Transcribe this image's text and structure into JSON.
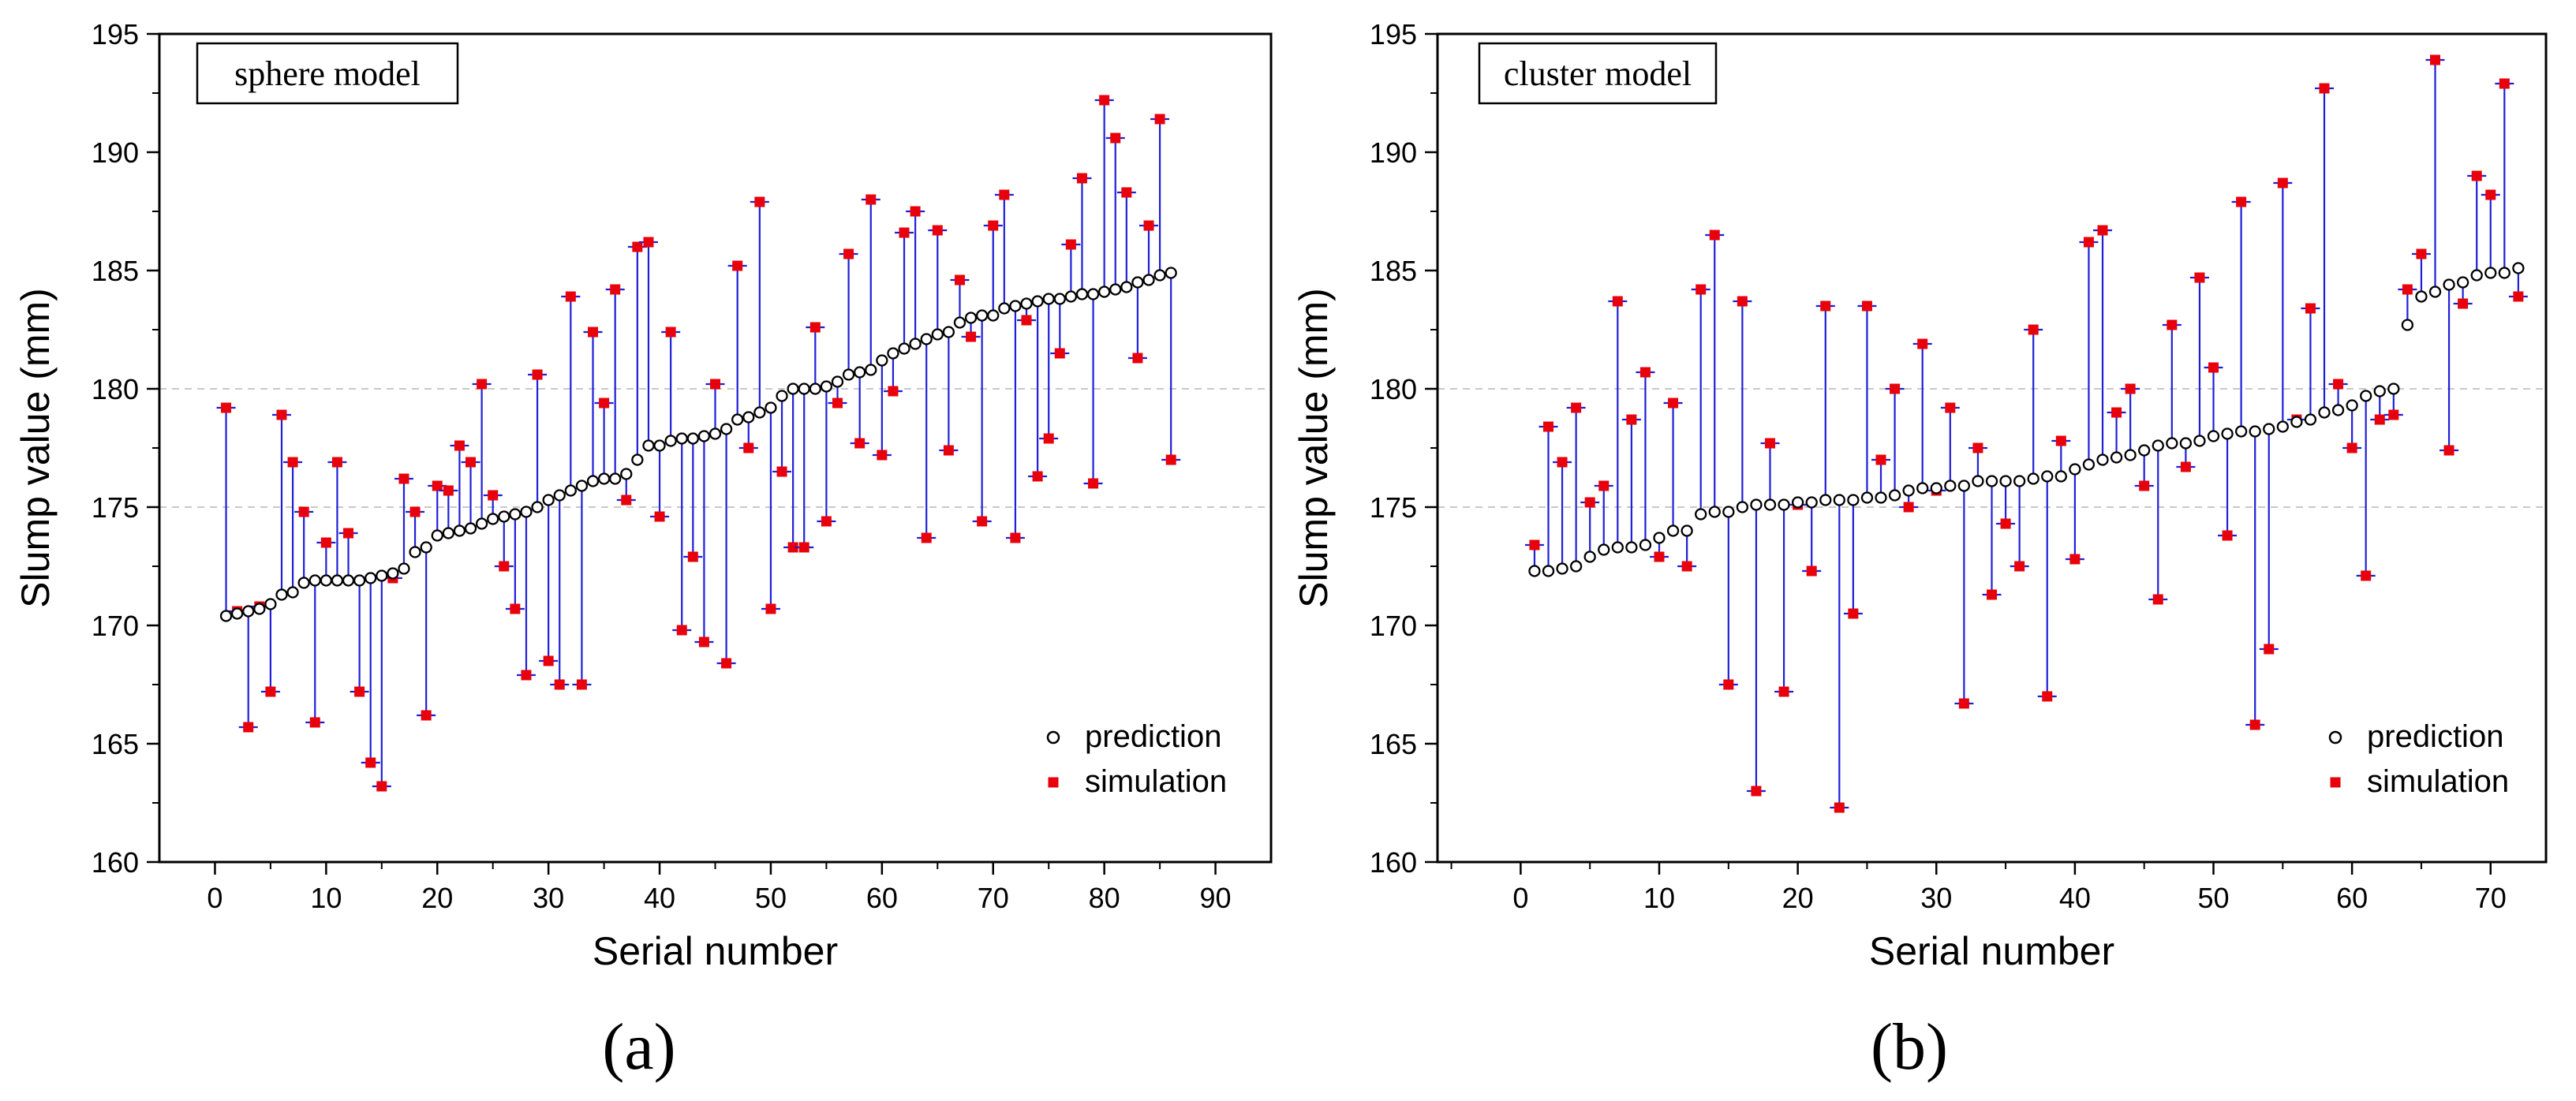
{
  "chart_data": [
    {
      "panel_label": "(a)",
      "type": "scatter",
      "title": "sphere model",
      "xlabel": "Serial number",
      "ylabel": "Slump value (mm)",
      "xlim": [
        -5,
        95
      ],
      "ylim": [
        160,
        195
      ],
      "x_ticks": [
        0,
        10,
        20,
        30,
        40,
        50,
        60,
        70,
        80,
        90
      ],
      "y_ticks": [
        160,
        165,
        170,
        175,
        180,
        185,
        190,
        195
      ],
      "grid_y": [
        175,
        180
      ],
      "legend_position": "bottom-right",
      "series": [
        {
          "name": "prediction",
          "marker": "open-circle",
          "color": "#000000",
          "values": [
            170.4,
            170.5,
            170.6,
            170.7,
            170.9,
            171.3,
            171.4,
            171.8,
            171.9,
            171.9,
            171.9,
            171.9,
            171.9,
            172.0,
            172.1,
            172.2,
            172.4,
            173.1,
            173.3,
            173.8,
            173.9,
            174.0,
            174.1,
            174.3,
            174.5,
            174.6,
            174.7,
            174.8,
            175.0,
            175.3,
            175.5,
            175.7,
            175.9,
            176.1,
            176.2,
            176.2,
            176.4,
            177.0,
            177.6,
            177.6,
            177.8,
            177.9,
            177.9,
            178.0,
            178.1,
            178.3,
            178.7,
            178.8,
            179.0,
            179.2,
            179.7,
            180.0,
            180.0,
            180.0,
            180.1,
            180.3,
            180.6,
            180.7,
            180.8,
            181.2,
            181.5,
            181.7,
            181.9,
            182.1,
            182.3,
            182.4,
            182.8,
            183.0,
            183.1,
            183.1,
            183.4,
            183.5,
            183.6,
            183.7,
            183.8,
            183.8,
            183.9,
            184.0,
            184.0,
            184.1,
            184.2,
            184.3,
            184.5,
            184.6,
            184.8,
            184.9
          ]
        },
        {
          "name": "simulation",
          "marker": "filled-square",
          "color": "#e8000b",
          "values": [
            179.2,
            170.6,
            165.7,
            170.8,
            167.2,
            178.9,
            176.9,
            174.8,
            165.9,
            173.5,
            176.9,
            173.9,
            167.2,
            164.2,
            163.2,
            172.0,
            176.2,
            174.8,
            166.2,
            175.9,
            175.7,
            177.6,
            176.9,
            180.2,
            175.5,
            172.5,
            170.7,
            167.9,
            180.6,
            168.5,
            167.5,
            183.9,
            167.5,
            182.4,
            179.4,
            184.2,
            175.3,
            186.0,
            186.2,
            174.6,
            182.4,
            169.8,
            172.9,
            169.3,
            180.2,
            168.4,
            185.2,
            177.5,
            187.9,
            170.7,
            176.5,
            173.3,
            173.3,
            182.6,
            174.4,
            179.4,
            185.7,
            177.7,
            188.0,
            177.2,
            179.9,
            186.6,
            187.5,
            173.7,
            186.7,
            177.4,
            184.6,
            182.2,
            174.4,
            186.9,
            188.2,
            173.7,
            182.9,
            176.3,
            177.9,
            181.5,
            186.1,
            188.9,
            176.0,
            192.2,
            190.6,
            188.3,
            181.3,
            186.9,
            191.4,
            177.0
          ]
        }
      ]
    },
    {
      "panel_label": "(b)",
      "type": "scatter",
      "title": "cluster model",
      "xlabel": "Serial number",
      "ylabel": "Slump value (mm)",
      "xlim": [
        -6,
        74
      ],
      "ylim": [
        160,
        195
      ],
      "x_ticks": [
        0,
        10,
        20,
        30,
        40,
        50,
        60,
        70
      ],
      "y_ticks": [
        160,
        165,
        170,
        175,
        180,
        185,
        190,
        195
      ],
      "grid_y": [
        175,
        180
      ],
      "legend_position": "bottom-right",
      "series": [
        {
          "name": "prediction",
          "marker": "open-circle",
          "color": "#000000",
          "values": [
            172.3,
            172.3,
            172.4,
            172.5,
            172.9,
            173.2,
            173.3,
            173.3,
            173.4,
            173.7,
            174.0,
            174.0,
            174.7,
            174.8,
            174.8,
            175.0,
            175.1,
            175.1,
            175.1,
            175.2,
            175.2,
            175.3,
            175.3,
            175.3,
            175.4,
            175.4,
            175.5,
            175.7,
            175.8,
            175.8,
            175.9,
            175.9,
            176.1,
            176.1,
            176.1,
            176.1,
            176.2,
            176.3,
            176.3,
            176.6,
            176.8,
            177.0,
            177.1,
            177.2,
            177.4,
            177.6,
            177.7,
            177.7,
            177.8,
            178.0,
            178.1,
            178.2,
            178.2,
            178.3,
            178.4,
            178.6,
            178.7,
            179.0,
            179.1,
            179.3,
            179.7,
            179.9,
            180.0,
            182.7,
            183.9,
            184.1,
            184.4,
            184.5,
            184.8,
            184.9,
            184.9,
            185.1
          ]
        },
        {
          "name": "simulation",
          "marker": "filled-square",
          "color": "#e8000b",
          "values": [
            173.4,
            178.4,
            176.9,
            179.2,
            175.2,
            175.9,
            183.7,
            178.7,
            180.7,
            172.9,
            179.4,
            172.5,
            184.2,
            186.5,
            167.5,
            183.7,
            163.0,
            177.7,
            167.2,
            175.1,
            172.3,
            183.5,
            162.3,
            170.5,
            183.5,
            177.0,
            180.0,
            175.0,
            181.9,
            175.7,
            179.2,
            166.7,
            177.5,
            171.3,
            174.3,
            172.5,
            182.5,
            167.0,
            177.8,
            172.8,
            186.2,
            186.7,
            179.0,
            180.0,
            175.9,
            171.1,
            182.7,
            176.7,
            184.7,
            180.9,
            173.8,
            187.9,
            165.8,
            169.0,
            188.7,
            178.7,
            183.4,
            192.7,
            180.2,
            177.5,
            172.1,
            178.7,
            178.9,
            184.2,
            185.7,
            193.9,
            177.4,
            183.6,
            189.0,
            188.2,
            192.9,
            183.9
          ]
        }
      ]
    }
  ]
}
